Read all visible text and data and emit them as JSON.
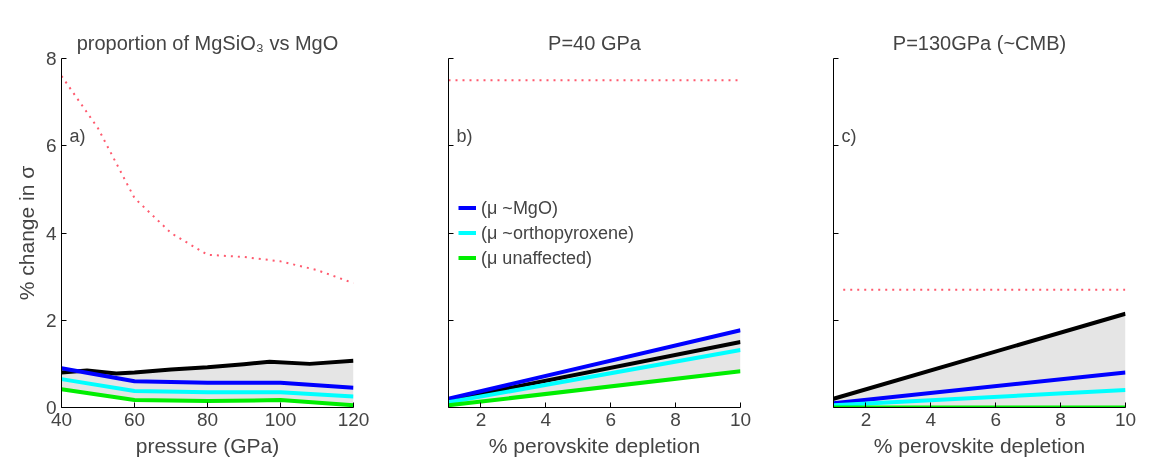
{
  "chart_data": [
    {
      "type": "line",
      "title": "proportion of MgSiO₃ vs MgO",
      "xlabel": "pressure (GPa)",
      "ylabel": "% change in σ",
      "xlim": [
        40,
        120
      ],
      "ylim": [
        0,
        8
      ],
      "xticks": [
        40,
        60,
        80,
        100,
        120
      ],
      "yticks": [
        0,
        2,
        4,
        6,
        8
      ],
      "grid": false,
      "legend": false,
      "annotations": [
        "a)"
      ],
      "series": [
        {
          "color": "#ff5a6e",
          "line_style": "dotted",
          "x": [
            40,
            50,
            60,
            70,
            80,
            90,
            100,
            110,
            120
          ],
          "values": [
            7.6,
            6.4,
            4.8,
            4.0,
            3.5,
            3.45,
            3.35,
            3.15,
            2.85
          ]
        },
        {
          "color": "#000000",
          "x": [
            40,
            47,
            55,
            60,
            70,
            80,
            90,
            97,
            108,
            120
          ],
          "values": [
            0.8,
            0.85,
            0.78,
            0.8,
            0.87,
            0.92,
            0.99,
            1.05,
            1.0,
            1.07
          ],
          "lower": [
            0.42,
            0.33,
            0.23,
            0.17,
            0.16,
            0.15,
            0.16,
            0.17,
            0.11,
            0.05
          ],
          "upper": [
            0.9,
            0.85,
            0.79,
            0.8,
            0.87,
            0.92,
            0.99,
            1.05,
            1.0,
            1.07
          ]
        },
        {
          "color": "#0000ff",
          "x": [
            40,
            60,
            80,
            100,
            120
          ],
          "values": [
            0.9,
            0.6,
            0.57,
            0.57,
            0.45
          ]
        },
        {
          "color": "#00ffff",
          "x": [
            40,
            60,
            80,
            100,
            120
          ],
          "values": [
            0.65,
            0.38,
            0.35,
            0.35,
            0.25
          ]
        },
        {
          "color": "#00ee00",
          "x": [
            40,
            60,
            80,
            100,
            120
          ],
          "values": [
            0.42,
            0.17,
            0.15,
            0.17,
            0.05
          ]
        }
      ]
    },
    {
      "type": "line",
      "title": "P=40 GPa",
      "xlabel": "% perovskite depletion",
      "xlim": [
        1,
        10
      ],
      "ylim": [
        0,
        8
      ],
      "xticks": [
        2,
        4,
        6,
        8,
        10
      ],
      "yticks": [
        0,
        2,
        4,
        6,
        8
      ],
      "tick_labels": "x",
      "grid": false,
      "legend": "left",
      "annotations": [
        "b)"
      ],
      "series": [
        {
          "color": "#ff5a6e",
          "line_style": "dotted",
          "x": [
            1,
            10
          ],
          "values": [
            7.5,
            7.5
          ]
        },
        {
          "color": "#000000",
          "x": [
            1,
            10
          ],
          "values": [
            0.17,
            1.5
          ],
          "lower": [
            0.05,
            0.83
          ],
          "upper": [
            0.2,
            1.77
          ]
        },
        {
          "name": "(μ ~MgO)",
          "color": "#0000ff",
          "x": [
            1,
            10
          ],
          "values": [
            0.2,
            1.77
          ]
        },
        {
          "name": "(μ ~orthopyroxene)",
          "color": "#00ffff",
          "x": [
            1,
            10
          ],
          "values": [
            0.12,
            1.32
          ]
        },
        {
          "name": "(μ unaffected)",
          "color": "#00ee00",
          "x": [
            1,
            10
          ],
          "values": [
            0.05,
            0.83
          ]
        }
      ]
    },
    {
      "type": "line",
      "title": "P=130GPa (~CMB)",
      "xlabel": "% perovskite depletion",
      "xlim": [
        1,
        10
      ],
      "ylim": [
        0,
        8
      ],
      "xticks": [
        2,
        4,
        6,
        8,
        10
      ],
      "yticks": [
        0,
        2,
        4,
        6,
        8
      ],
      "tick_labels": "x",
      "grid": false,
      "legend": false,
      "annotations": [
        "c)"
      ],
      "series": [
        {
          "color": "#ff5a6e",
          "line_style": "dotted",
          "x": [
            1.3,
            10
          ],
          "values": [
            2.7,
            2.7
          ]
        },
        {
          "color": "#000000",
          "x": [
            1,
            10
          ],
          "values": [
            0.2,
            2.15
          ],
          "lower": [
            0,
            0
          ],
          "upper": [
            0.2,
            2.15
          ]
        },
        {
          "color": "#0000ff",
          "x": [
            1,
            10
          ],
          "values": [
            0.1,
            0.8
          ]
        },
        {
          "color": "#00ffff",
          "x": [
            1,
            10
          ],
          "values": [
            0.05,
            0.4
          ]
        },
        {
          "color": "#00ee00",
          "x": [
            1,
            10
          ],
          "values": [
            0,
            0
          ]
        }
      ]
    }
  ]
}
